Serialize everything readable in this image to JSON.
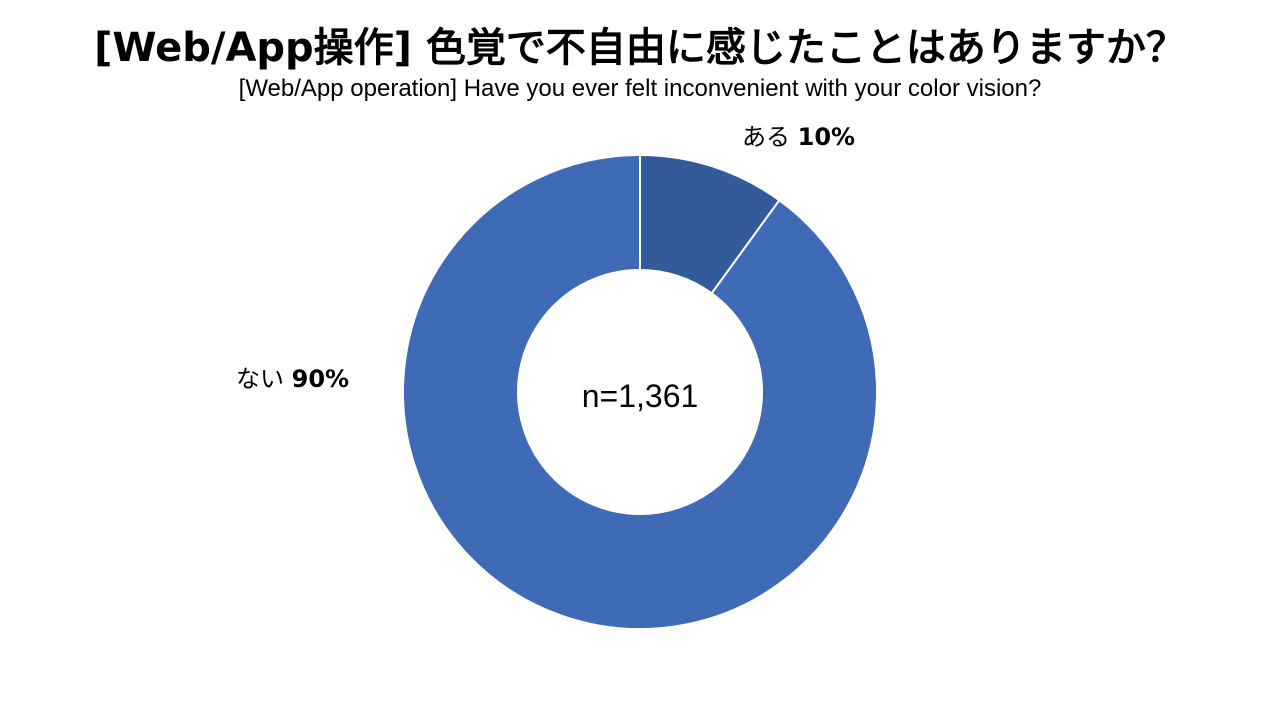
{
  "chart_data": {
    "type": "pie",
    "title": "[Web/App操作] 色覚で不自由に感じたことはありますか？",
    "subtitle": "[Web/App operation] Have you ever felt inconvenient with your color vision?",
    "center_label": "n=1,361",
    "slices": [
      {
        "label": "ある",
        "value": 10,
        "value_label": "10%",
        "color": "#335a9a"
      },
      {
        "label": "ない",
        "value": 90,
        "value_label": "90%",
        "color": "#3f6ab6"
      }
    ],
    "donut": true
  }
}
